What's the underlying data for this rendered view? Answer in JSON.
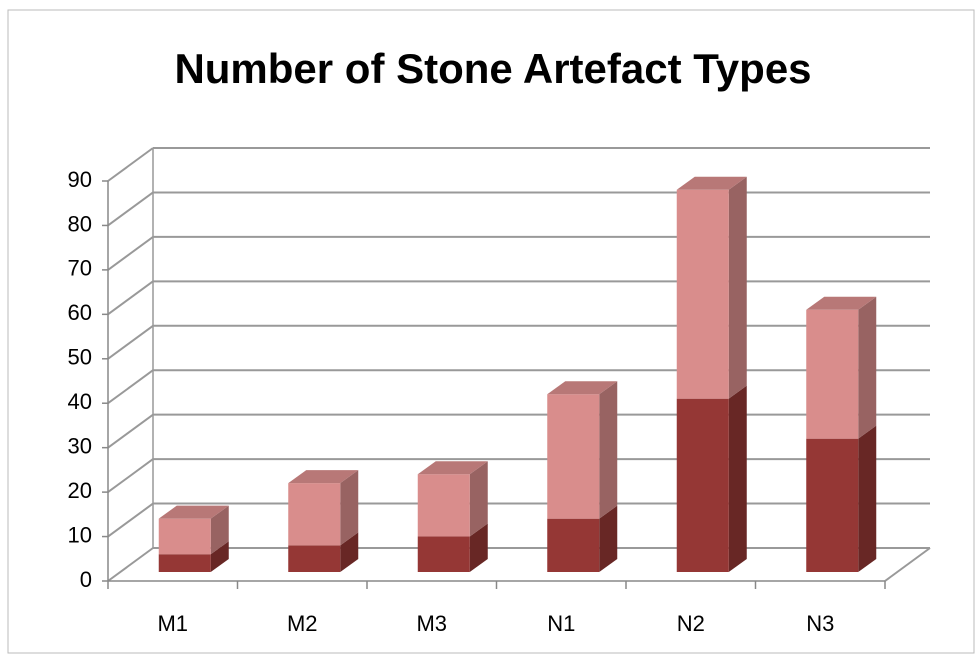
{
  "chart_data": {
    "type": "bar3d_stacked",
    "title": "Number of Stone Artefact Types",
    "categories": [
      "M1",
      "M2",
      "M3",
      "N1",
      "N2",
      "N3"
    ],
    "series": [
      {
        "color": "#953735",
        "values": [
          4,
          6,
          8,
          12,
          39,
          30
        ]
      },
      {
        "color": "#d98d8c",
        "values": [
          8,
          14,
          14,
          28,
          47,
          29
        ]
      }
    ],
    "ylim": [
      0,
      90
    ],
    "yticks": [
      0,
      10,
      20,
      30,
      40,
      50,
      60,
      70,
      80,
      90
    ],
    "grid": true
  }
}
